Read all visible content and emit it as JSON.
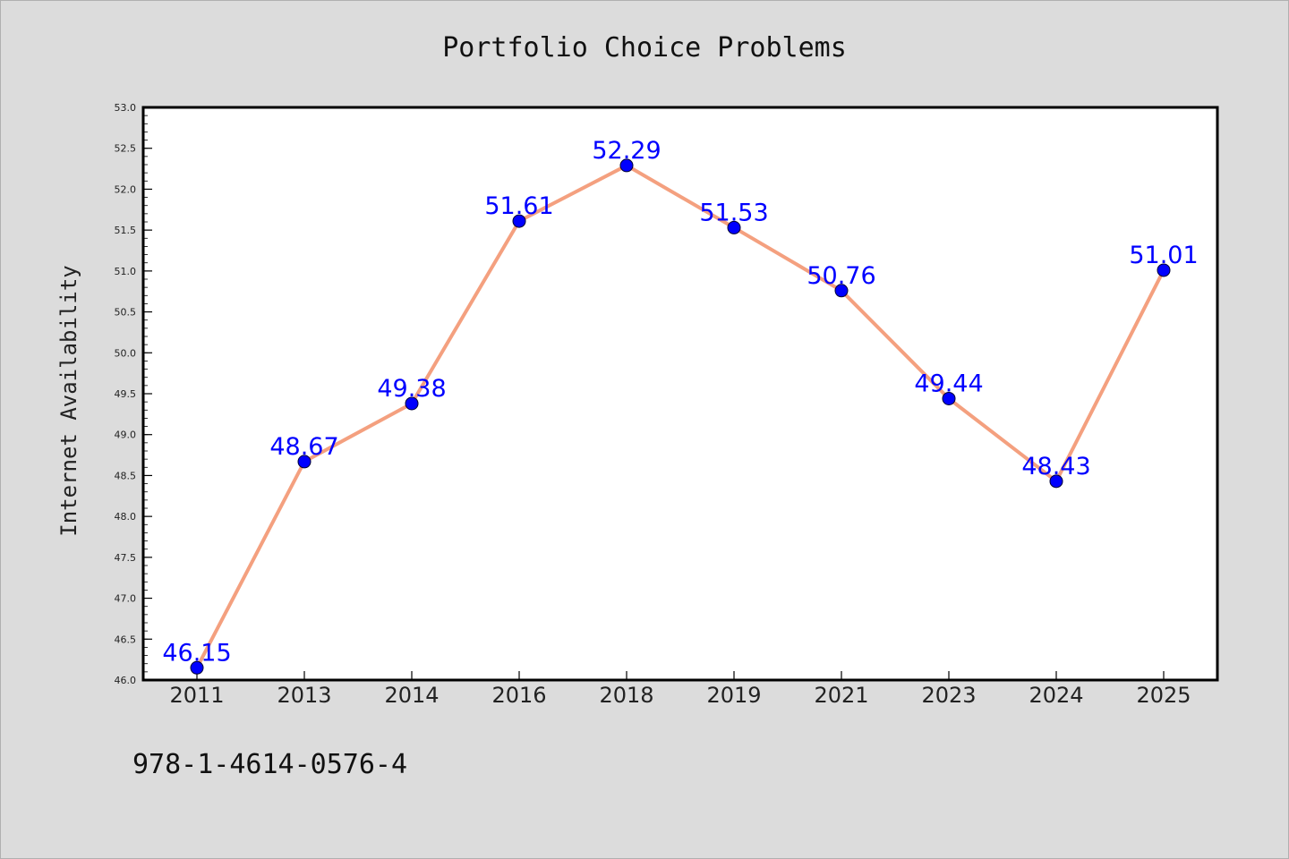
{
  "colors": {
    "background": "#dcdcdc",
    "plot_background": "#ffffff",
    "line": "#f4a07f",
    "marker": "#0000ff",
    "data_label": "#0000ff"
  },
  "footer_text": "978-1-4614-0576-4",
  "chart_data": {
    "type": "line",
    "title": "Portfolio Choice Problems",
    "xlabel": "",
    "ylabel": "Internet Availability",
    "categories": [
      "2011",
      "2013",
      "2014",
      "2016",
      "2018",
      "2019",
      "2021",
      "2023",
      "2024",
      "2025"
    ],
    "series": [
      {
        "values": [
          46.15,
          48.67,
          49.38,
          51.61,
          52.29,
          51.53,
          50.76,
          49.44,
          48.43,
          51.01
        ],
        "data_labels": [
          "46.15",
          "48.67",
          "49.38",
          "51.61",
          "52.29",
          "51.53",
          "50.76",
          "49.44",
          "48.43",
          "51.01"
        ]
      }
    ],
    "ylim": [
      46.0,
      53.0
    ],
    "yticks": [
      "46.0",
      "46.5",
      "47.0",
      "47.5",
      "48.0",
      "48.5",
      "49.0",
      "49.5",
      "50.0",
      "50.5",
      "51.0",
      "51.5",
      "52.0",
      "52.5",
      "53.0"
    ],
    "grid": false,
    "legend": "none"
  }
}
